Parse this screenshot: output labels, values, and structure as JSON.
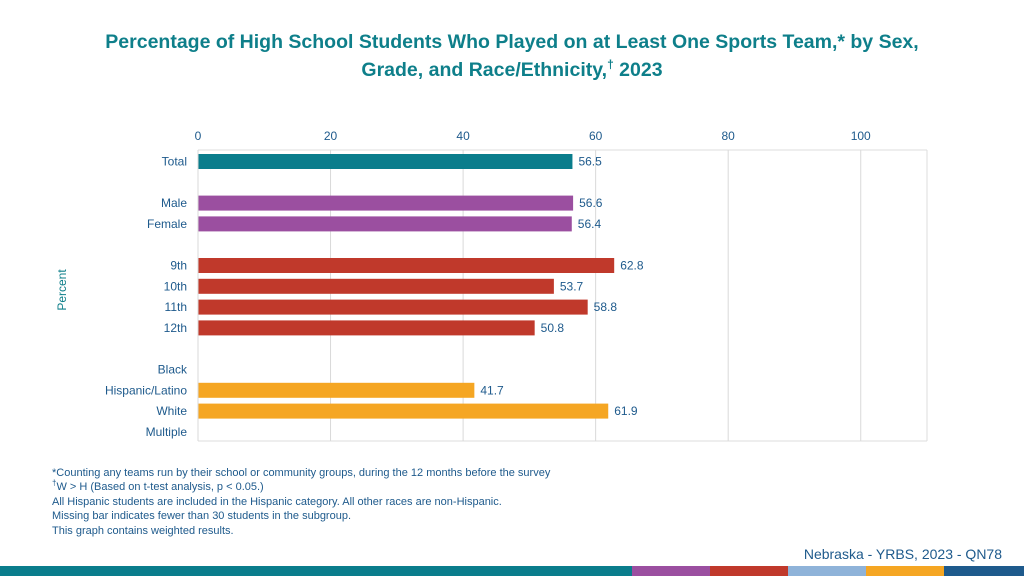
{
  "title": {
    "line1": "Percentage of High School Students Who Played on at Least One Sports Team,* by Sex,",
    "line2": "Grade, and Race/Ethnicity,",
    "line2_sup": "†",
    "line2_end": " 2023"
  },
  "chart_data": {
    "type": "bar",
    "orientation": "horizontal",
    "title": "Percentage of High School Students Who Played on at Least One Sports Team,* by Sex, Grade, and Race/Ethnicity,† 2023",
    "ylabel": "Percent",
    "xlim": [
      0,
      110
    ],
    "xticks": [
      0,
      20,
      40,
      60,
      80,
      100
    ],
    "grid": true,
    "categories": [
      "Total",
      "",
      "Male",
      "Female",
      "",
      "9th",
      "10th",
      "11th",
      "12th",
      "",
      "Black",
      "Hispanic/Latino",
      "White",
      "Multiple"
    ],
    "groups": [
      "total",
      "spacer",
      "sex",
      "sex",
      "spacer",
      "grade",
      "grade",
      "grade",
      "grade",
      "spacer",
      "race",
      "race",
      "race",
      "race"
    ],
    "values": [
      56.5,
      null,
      56.6,
      56.4,
      null,
      62.8,
      53.7,
      58.8,
      50.8,
      null,
      null,
      41.7,
      61.9,
      null
    ],
    "value_labels": [
      "56.5",
      "",
      "56.6",
      "56.4",
      "",
      "62.8",
      "53.7",
      "58.8",
      "50.8",
      "",
      "",
      "41.7",
      "61.9",
      ""
    ],
    "group_colors": {
      "total": "#0a7d8c",
      "sex": "#9b4fa0",
      "grade": "#c0392b",
      "race": "#f5a623"
    }
  },
  "notes": {
    "line1": "*Counting any teams run by their school or community groups, during the 12 months before the survey",
    "line2_sup": "†",
    "line2": "W > H (Based on t-test analysis, p < 0.05.)",
    "line3": "All Hispanic students are included in the Hispanic category.  All other races are non-Hispanic.",
    "line4": "Missing bar indicates fewer than 30 students in the subgroup.",
    "line5": "This graph contains weighted results."
  },
  "source": "Nebraska - YRBS, 2023 - QN78",
  "footer_colors": [
    "#0a7d8c",
    "#9b4fa0",
    "#c0392b",
    "#8fb3d9",
    "#f5a623",
    "#1e5a8c"
  ]
}
